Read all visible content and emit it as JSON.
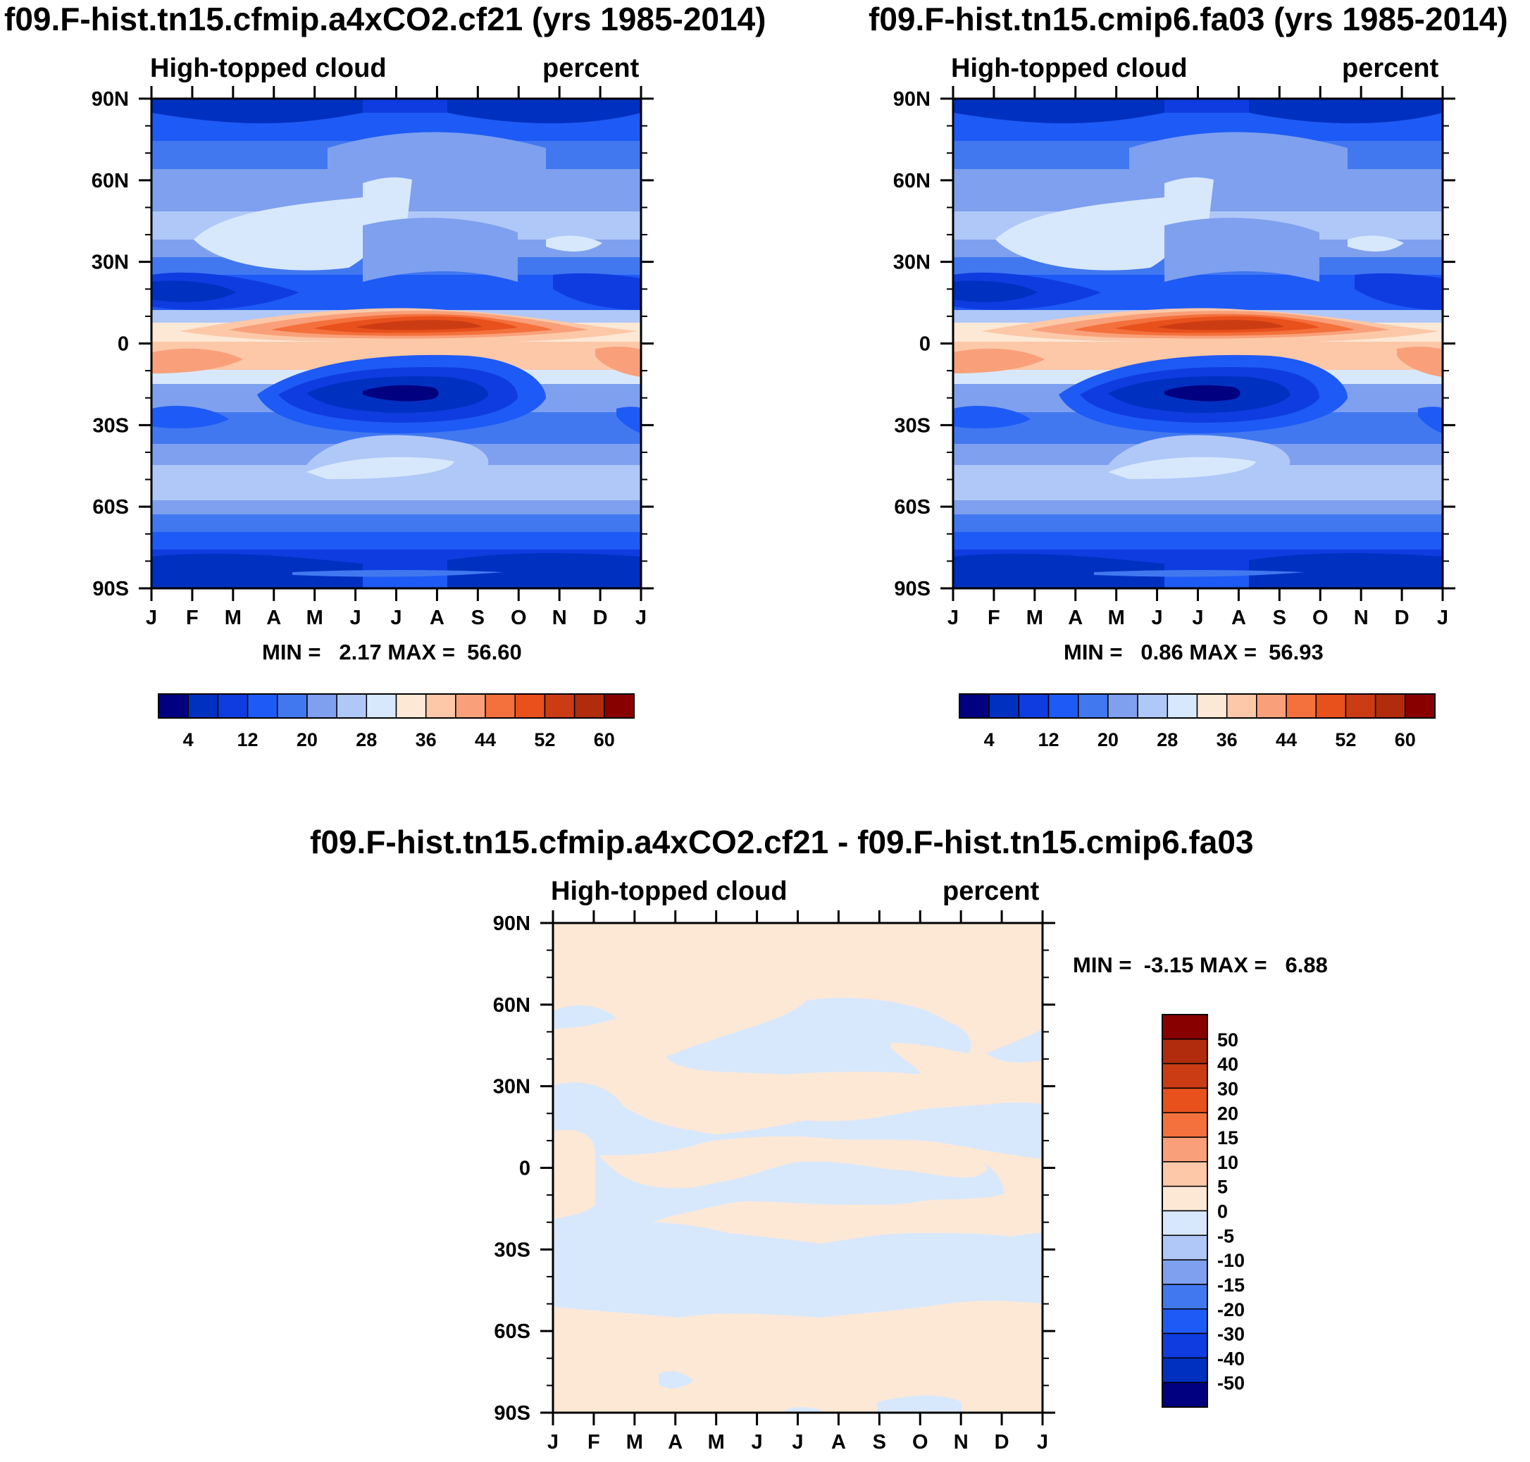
{
  "colors": {
    "seq_palette": [
      "#000080",
      "#0030c0",
      "#0f3ce0",
      "#1e5af5",
      "#4178f0",
      "#7ea0ee",
      "#b0c8f8",
      "#d8e8fc",
      "#fde8d6",
      "#fcc8a8",
      "#f9a07a",
      "#f4703c",
      "#e8501c",
      "#cc3c14",
      "#b02c0c",
      "#880000"
    ],
    "diff_palette": [
      "#000080",
      "#0030c0",
      "#0f3ce0",
      "#1e5af5",
      "#4178f0",
      "#7ea0ee",
      "#b0c8f8",
      "#d8e8fc",
      "#fde8d6",
      "#fcc8a8",
      "#f9a07a",
      "#f4703c",
      "#e8501c",
      "#cc3c14",
      "#b02c0c",
      "#880000"
    ]
  },
  "chart_data": [
    {
      "id": "panel1",
      "type": "heatmap",
      "title": "f09.F-hist.tn15.cfmip.a4xCO2.cf21 (yrs 1985-2014)",
      "left_label": "High-topped cloud",
      "right_label": "percent",
      "x_tick_labels": [
        "J",
        "F",
        "M",
        "A",
        "M",
        "J",
        "J",
        "A",
        "S",
        "O",
        "N",
        "D",
        "J"
      ],
      "y_tick_labels": [
        "90N",
        "60N",
        "30N",
        "0",
        "30S",
        "60S",
        "90S"
      ],
      "xlabel": "",
      "ylabel": "",
      "stats_text": "MIN =   2.17 MAX =  56.60",
      "min": 2.17,
      "max": 56.6,
      "colorbar_labels": [
        "4",
        "12",
        "20",
        "28",
        "36",
        "44",
        "52",
        "60"
      ],
      "colorbar_levels": [
        4,
        8,
        12,
        16,
        20,
        24,
        28,
        32,
        36,
        40,
        44,
        48,
        52,
        56,
        60
      ]
    },
    {
      "id": "panel2",
      "type": "heatmap",
      "title": "f09.F-hist.tn15.cmip6.fa03 (yrs 1985-2014)",
      "left_label": "High-topped cloud",
      "right_label": "percent",
      "x_tick_labels": [
        "J",
        "F",
        "M",
        "A",
        "M",
        "J",
        "J",
        "A",
        "S",
        "O",
        "N",
        "D",
        "J"
      ],
      "y_tick_labels": [
        "90N",
        "60N",
        "30N",
        "0",
        "30S",
        "60S",
        "90S"
      ],
      "xlabel": "",
      "ylabel": "",
      "stats_text": "MIN =   0.86 MAX =  56.93",
      "min": 0.86,
      "max": 56.93,
      "colorbar_labels": [
        "4",
        "12",
        "20",
        "28",
        "36",
        "44",
        "52",
        "60"
      ],
      "colorbar_levels": [
        4,
        8,
        12,
        16,
        20,
        24,
        28,
        32,
        36,
        40,
        44,
        48,
        52,
        56,
        60
      ]
    },
    {
      "id": "panel3",
      "type": "heatmap",
      "title": "f09.F-hist.tn15.cfmip.a4xCO2.cf21 - f09.F-hist.tn15.cmip6.fa03",
      "left_label": "High-topped cloud",
      "right_label": "percent",
      "x_tick_labels": [
        "J",
        "F",
        "M",
        "A",
        "M",
        "J",
        "J",
        "A",
        "S",
        "O",
        "N",
        "D",
        "J"
      ],
      "y_tick_labels": [
        "90N",
        "60N",
        "30N",
        "0",
        "30S",
        "60S",
        "90S"
      ],
      "xlabel": "",
      "ylabel": "",
      "stats_text": "MIN =  -3.15 MAX =   6.88",
      "min": -3.15,
      "max": 6.88,
      "colorbar_labels": [
        "50",
        "40",
        "30",
        "20",
        "15",
        "10",
        "5",
        "0",
        "-5",
        "-10",
        "-15",
        "-20",
        "-30",
        "-40",
        "-50"
      ],
      "colorbar_levels": [
        -50,
        -40,
        -30,
        -20,
        -15,
        -10,
        -5,
        0,
        5,
        10,
        15,
        20,
        30,
        40,
        50
      ]
    }
  ]
}
